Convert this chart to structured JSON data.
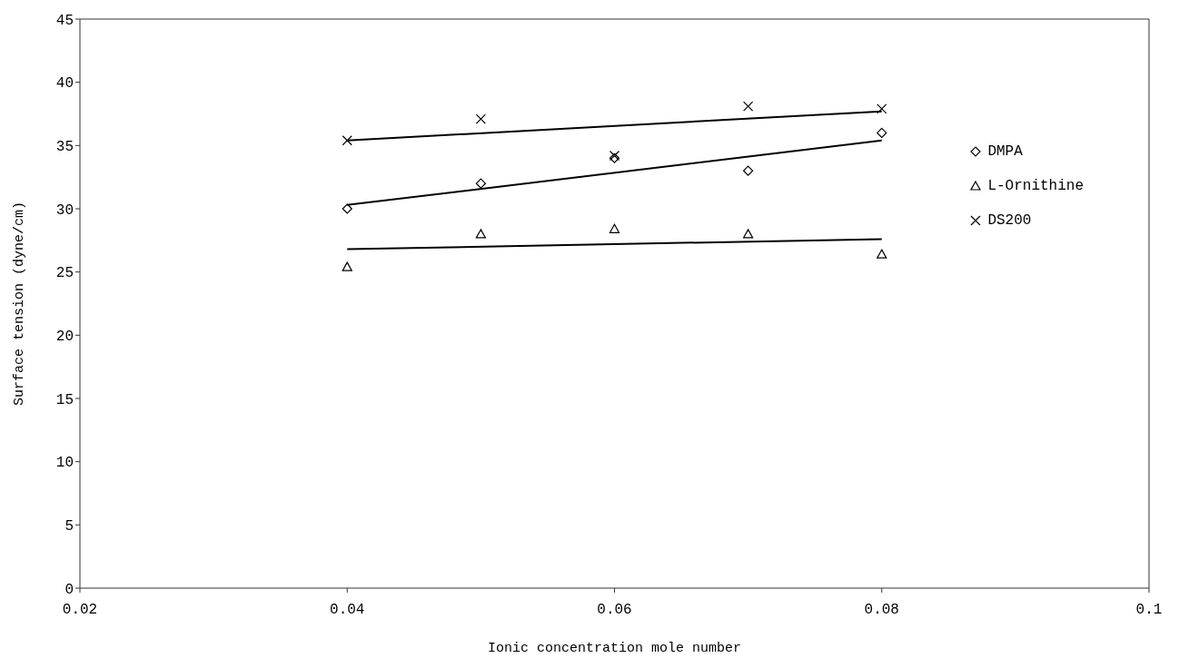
{
  "chart_data": {
    "type": "scatter",
    "xlabel": "Ionic concentration mole number",
    "ylabel": "Surface tension (dyne/cm)",
    "xlim": [
      0.02,
      0.1
    ],
    "xticks": [
      0.02,
      0.04,
      0.06,
      0.08,
      0.1
    ],
    "ylim": [
      0,
      45
    ],
    "yticks": [
      0,
      5,
      10,
      15,
      20,
      25,
      30,
      35,
      40,
      45
    ],
    "grid": false,
    "legend": "top right",
    "series": [
      {
        "name": "DMPA",
        "color": "#000000",
        "marker": "diamond",
        "x": [
          0.04,
          0.05,
          0.06,
          0.07,
          0.08
        ],
        "values": [
          30,
          32,
          34,
          33,
          36
        ]
      },
      {
        "name": "L-Ornithine",
        "color": "#000000",
        "marker": "triangle",
        "x": [
          0.04,
          0.05,
          0.06,
          0.07,
          0.08
        ],
        "values": [
          25.4,
          28,
          28.4,
          28,
          26.4
        ]
      },
      {
        "name": "DS200",
        "color": "#000000",
        "marker": "cross",
        "x": [
          0.04,
          0.05,
          0.06,
          0.07,
          0.08
        ],
        "values": [
          35.4,
          37.1,
          34.2,
          38.1,
          37.9
        ]
      },
      {
        "type": "line",
        "color": "#000000",
        "marker": "none",
        "line_style": "solid",
        "x": [
          0.04,
          0.08
        ],
        "values": [
          30.3,
          35.4
        ]
      },
      {
        "type": "line",
        "color": "#000000",
        "marker": "none",
        "line_style": "solid",
        "x": [
          0.04,
          0.08
        ],
        "values": [
          26.8,
          27.6
        ]
      },
      {
        "type": "line",
        "color": "#000000",
        "marker": "none",
        "line_style": "solid",
        "x": [
          0.04,
          0.08
        ],
        "values": [
          35.4,
          37.7
        ]
      }
    ]
  }
}
